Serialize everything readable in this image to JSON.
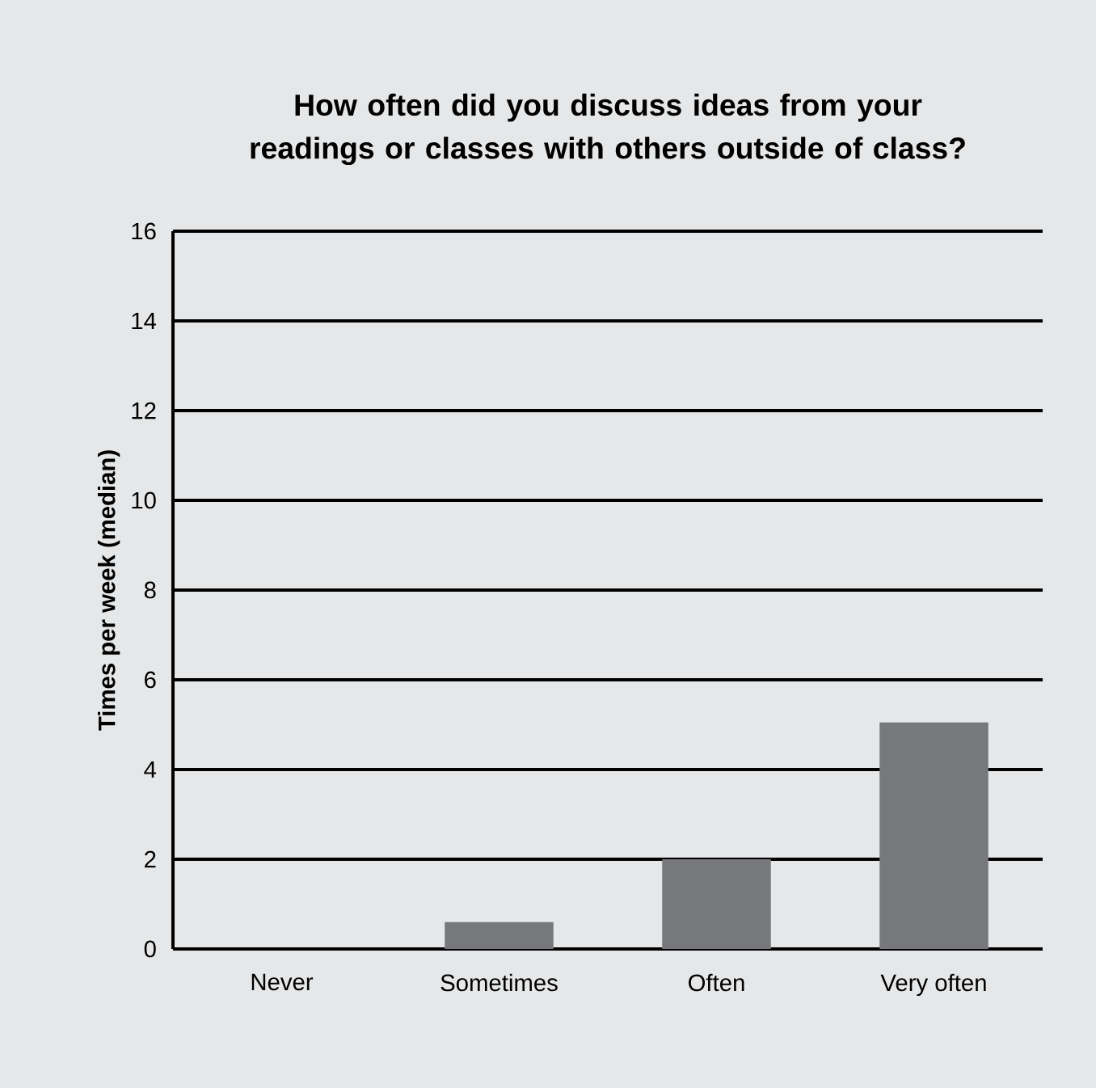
{
  "chart_data": {
    "type": "bar",
    "title": "How often did you discuss ideas from your readings or classes with others outside of class?",
    "ylabel": "Times per week (median)",
    "categories": [
      "Never",
      "Sometimes",
      "Often",
      "Very often"
    ],
    "values": [
      0,
      0.6,
      2,
      5.05
    ],
    "color": "#77787b",
    "ylim": [
      0,
      16
    ],
    "yticks": [
      0,
      2,
      4,
      6,
      8,
      10,
      12,
      14,
      16
    ],
    "grid": "y"
  }
}
